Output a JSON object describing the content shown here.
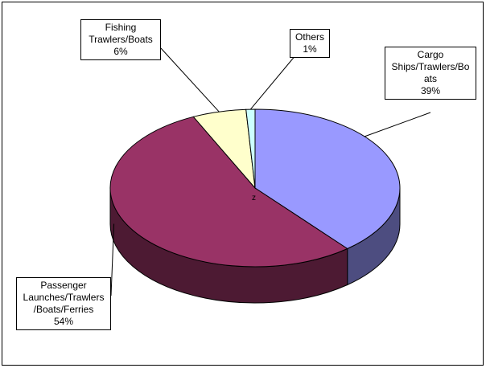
{
  "chart_data": {
    "type": "pie",
    "title": "",
    "style": "3d",
    "legend": "none",
    "center_marker": "z",
    "slices": [
      {
        "label_lines": [
          "Cargo",
          "Ships/Trawlers/Bo",
          "ats"
        ],
        "value": 39,
        "value_label": "39%",
        "color": "#9999ff",
        "side_color": "#4d4d80"
      },
      {
        "label_lines": [
          "Passenger",
          "Launches/Trawlers",
          "/Boats/Ferries"
        ],
        "value": 54,
        "value_label": "54%",
        "color": "#993366",
        "side_color": "#4d1a33"
      },
      {
        "label_lines": [
          "Fishing",
          "Trawlers/Boats"
        ],
        "value": 6,
        "value_label": "6%",
        "color": "#ffffcc",
        "side_color": "#808066"
      },
      {
        "label_lines": [
          "Others"
        ],
        "value": 1,
        "value_label": "1%",
        "color": "#ccffff",
        "side_color": "#668080"
      }
    ]
  }
}
